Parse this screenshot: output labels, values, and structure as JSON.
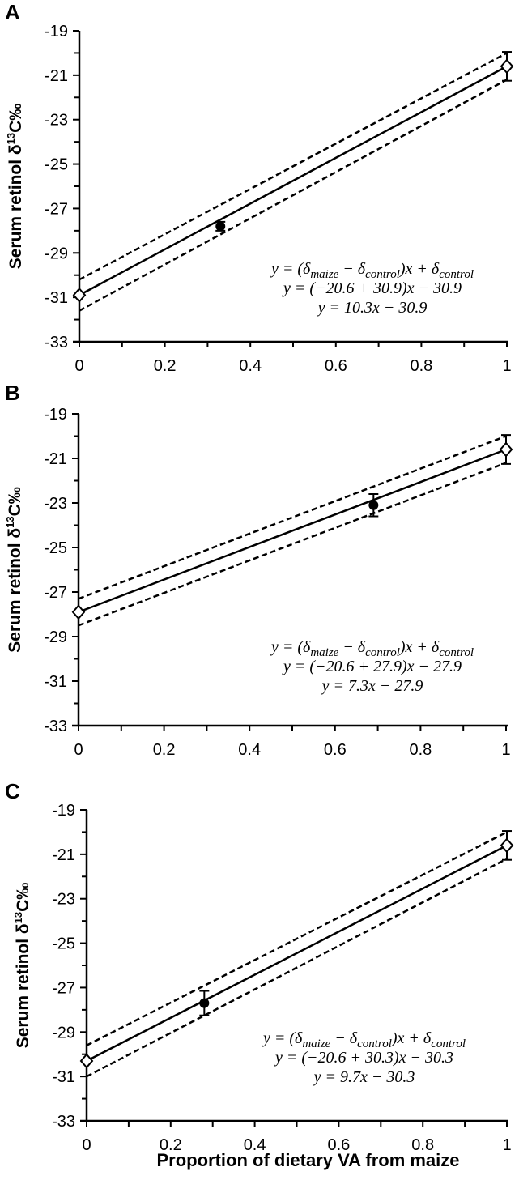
{
  "chart_data": [
    {
      "panel": "A",
      "type": "line",
      "title": "",
      "xlabel": "Proportion of dietary VA from maize",
      "ylabel": "Serum retinol δ13C‰",
      "xlim": [
        0,
        1
      ],
      "ylim": [
        -33,
        -19
      ],
      "xticks": [
        "0",
        "0.2",
        "0.4",
        "0.6",
        "0.8",
        "1"
      ],
      "yticks": [
        "-19",
        "-21",
        "-23",
        "-25",
        "-27",
        "-29",
        "-31",
        "-33"
      ],
      "grid": false,
      "series": [
        {
          "name": "fit",
          "style": "solid",
          "x": [
            0,
            1
          ],
          "y": [
            -30.9,
            -20.6
          ]
        },
        {
          "name": "upper bound",
          "style": "dashed",
          "x": [
            0,
            1
          ],
          "y": [
            -30.2,
            -20.0
          ]
        },
        {
          "name": "lower bound",
          "style": "dashed",
          "x": [
            0,
            1
          ],
          "y": [
            -31.6,
            -21.2
          ]
        },
        {
          "name": "endpoints",
          "marker": "open-diamond",
          "x": [
            0,
            1
          ],
          "y": [
            -30.9,
            -20.6
          ],
          "error": [
            0,
            0.65
          ]
        },
        {
          "name": "observed",
          "marker": "filled-circle",
          "x": [
            0.33
          ],
          "y": [
            -27.8
          ],
          "error": [
            0.2
          ]
        }
      ],
      "annotations": [
        "y = (δmaize − δcontrol)x + δcontrol",
        "y = (−20.6 + 30.9)x − 30.9",
        "y = 10.3x − 30.9"
      ]
    },
    {
      "panel": "B",
      "type": "line",
      "title": "",
      "xlabel": "",
      "ylabel": "Serum retinol δ13C‰",
      "xlim": [
        0,
        1
      ],
      "ylim": [
        -33,
        -19
      ],
      "xticks": [
        "0",
        "0.2",
        "0.4",
        "0.6",
        "0.8",
        "1"
      ],
      "yticks": [
        "-19",
        "-21",
        "-23",
        "-25",
        "-27",
        "-29",
        "-31",
        "-33"
      ],
      "grid": false,
      "series": [
        {
          "name": "fit",
          "style": "solid",
          "x": [
            0,
            1
          ],
          "y": [
            -27.9,
            -20.6
          ]
        },
        {
          "name": "upper bound",
          "style": "dashed",
          "x": [
            0,
            1
          ],
          "y": [
            -27.3,
            -20.0
          ]
        },
        {
          "name": "lower bound",
          "style": "dashed",
          "x": [
            0,
            1
          ],
          "y": [
            -28.5,
            -21.2
          ]
        },
        {
          "name": "endpoints",
          "marker": "open-diamond",
          "x": [
            0,
            1
          ],
          "y": [
            -27.9,
            -20.6
          ],
          "error": [
            0,
            0.65
          ]
        },
        {
          "name": "observed",
          "marker": "filled-circle",
          "x": [
            0.69
          ],
          "y": [
            -23.1
          ],
          "error": [
            0.5
          ]
        }
      ],
      "annotations": [
        "y = (δmaize − δcontrol)x + δcontrol",
        "y = (−20.6 + 27.9)x − 27.9",
        "y = 7.3x − 27.9"
      ]
    },
    {
      "panel": "C",
      "type": "line",
      "title": "",
      "xlabel": "Proportion of dietary VA from maize",
      "ylabel": "Serum retinol δ13C‰",
      "xlim": [
        0,
        1
      ],
      "ylim": [
        -33,
        -19
      ],
      "xticks": [
        "0",
        "0.2",
        "0.4",
        "0.6",
        "0.8",
        "1"
      ],
      "yticks": [
        "-19",
        "-21",
        "-23",
        "-25",
        "-27",
        "-29",
        "-31",
        "-33"
      ],
      "grid": false,
      "series": [
        {
          "name": "fit",
          "style": "solid",
          "x": [
            0,
            1
          ],
          "y": [
            -30.3,
            -20.6
          ]
        },
        {
          "name": "upper bound",
          "style": "dashed",
          "x": [
            0,
            1
          ],
          "y": [
            -29.6,
            -20.0
          ]
        },
        {
          "name": "lower bound",
          "style": "dashed",
          "x": [
            0,
            1
          ],
          "y": [
            -31.0,
            -21.2
          ]
        },
        {
          "name": "endpoints",
          "marker": "open-diamond",
          "x": [
            0,
            1
          ],
          "y": [
            -30.3,
            -20.6
          ],
          "error": [
            0,
            0.65
          ]
        },
        {
          "name": "observed",
          "marker": "filled-circle",
          "x": [
            0.28
          ],
          "y": [
            -27.7
          ],
          "error": [
            0.55
          ]
        }
      ],
      "annotations": [
        "y = (δmaize − δcontrol)x + δcontrol",
        "y = (−20.6 + 30.3)x − 30.3",
        "y = 9.7x − 30.3"
      ]
    }
  ],
  "labels": {
    "panel_a": "A",
    "panel_b": "B",
    "panel_c": "C",
    "ylabel_main": "Serum retinol δ",
    "ylabel_sup": "13",
    "ylabel_tail": "C‰",
    "xlabel": "Proportion of dietary VA from maize"
  },
  "equations": {
    "a": {
      "line2": "y = (−20.6 + 30.9)x  −  30.9",
      "line3": "y = 10.3x − 30.9"
    },
    "b": {
      "line2": "y = (−20.6 + 27.9)x  −  27.9",
      "line3": "y = 7.3x − 27.9"
    },
    "c": {
      "line2": "y = (−20.6 + 30.3)x  −  30.3",
      "line3": "y = 9.7x − 30.3"
    }
  },
  "colors": {
    "ink": "#000000",
    "background": "#ffffff"
  }
}
